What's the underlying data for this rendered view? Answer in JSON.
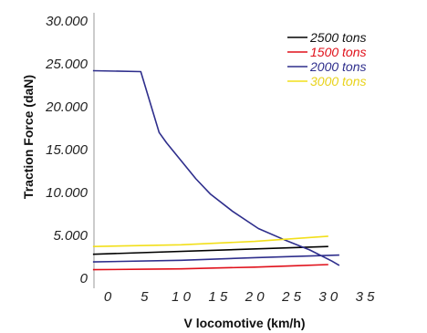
{
  "chart_data": {
    "type": "line",
    "title": "",
    "xlabel": "V locomotive (km/h)",
    "ylabel": "Traction Force (daN)",
    "xlim": [
      -2,
      36
    ],
    "ylim": [
      0,
      30000
    ],
    "x_ticks": [
      0,
      5,
      10,
      15,
      20,
      25,
      30,
      35
    ],
    "x_tick_labels": [
      "0",
      "5",
      "1 0",
      "1 5",
      "2 0",
      "2 5",
      "3 0",
      "3 5"
    ],
    "y_ticks": [
      0,
      5000,
      10000,
      15000,
      20000,
      25000,
      30000
    ],
    "y_tick_labels": [
      "0",
      "5.000",
      "10.000",
      "15.000",
      "20.000",
      "25.000",
      "30.000"
    ],
    "grid": false,
    "legend_position": "top-right",
    "series": [
      {
        "name": "2500 tons",
        "color": "#000000",
        "x": [
          -2,
          30
        ],
        "y": [
          2800,
          3700
        ]
      },
      {
        "name": "1500 tons",
        "color": "#e0101a",
        "x": [
          -2,
          5,
          10,
          15,
          20,
          25,
          30
        ],
        "y": [
          1000,
          1050,
          1100,
          1200,
          1300,
          1450,
          1600
        ]
      },
      {
        "name": "2000 tons",
        "color": "#2e2e8c",
        "x": [
          -2,
          4.5,
          7,
          8,
          10,
          12,
          14,
          17,
          20.5,
          24,
          27.5,
          30.5,
          31.5
        ],
        "y": [
          24200,
          24100,
          17000,
          15800,
          13700,
          11600,
          9800,
          7800,
          5800,
          4500,
          3300,
          2000,
          1500
        ]
      },
      {
        "name": "3000 tons",
        "color": "#f2df1a",
        "x": [
          -2,
          10,
          20,
          30
        ],
        "y": [
          3700,
          3900,
          4300,
          4900
        ]
      },
      {
        "name": "",
        "color": "#2e2e8c",
        "x": [
          -2,
          10,
          20,
          31.5
        ],
        "y": [
          1900,
          2100,
          2400,
          2700
        ]
      }
    ]
  }
}
